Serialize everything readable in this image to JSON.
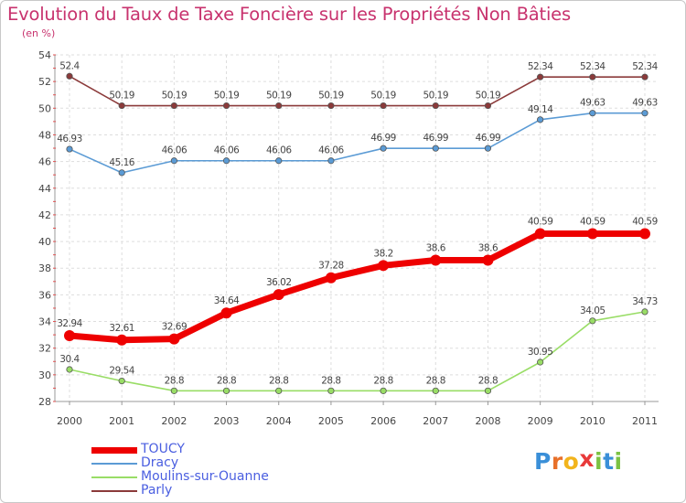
{
  "title": "Evolution du Taux de Taxe Foncière sur les Propriétés Non Bâties",
  "unit": "(en %)",
  "logo": {
    "letters": [
      "P",
      "r",
      "o",
      "x",
      "i",
      "t",
      "i"
    ],
    "colors": [
      "#3a8fd8",
      "#e8702a",
      "#f2b41c",
      "#e83a3a",
      "#7cc243",
      "#3a8fd8",
      "#7cc243"
    ]
  },
  "chart_data": {
    "type": "line",
    "title": "Evolution du Taux de Taxe Foncière sur les Propriétés Non Bâties",
    "ylabel": "(en %)",
    "xlabel": "",
    "x": [
      "2000",
      "2001",
      "2002",
      "2003",
      "2004",
      "2005",
      "2006",
      "2007",
      "2008",
      "2009",
      "2010",
      "2011"
    ],
    "ylim": [
      28,
      54
    ],
    "yticks": [
      28,
      30,
      32,
      34,
      36,
      38,
      40,
      42,
      44,
      46,
      48,
      50,
      52,
      54
    ],
    "grid": true,
    "legend_position": "bottom-left",
    "series": [
      {
        "name": "TOUCY",
        "color": "#ee0000",
        "values": [
          32.94,
          32.61,
          32.69,
          34.64,
          36.02,
          37.28,
          38.2,
          38.6,
          38.6,
          40.59,
          40.59,
          40.59
        ],
        "labels": [
          "32.94",
          "32.61",
          "32.69",
          "34.64",
          "36.02",
          "37.28",
          "38.2",
          "38.6",
          "38.6",
          "40.59",
          "40.59",
          "40.59"
        ]
      },
      {
        "name": "Dracy",
        "color": "#5b9bd5",
        "values": [
          46.93,
          45.16,
          46.06,
          46.06,
          46.06,
          46.06,
          46.99,
          46.99,
          46.99,
          49.14,
          49.63,
          49.63
        ],
        "labels": [
          "46.93",
          "45.16",
          "46.06",
          "46.06",
          "46.06",
          "46.06",
          "46.99",
          "46.99",
          "46.99",
          "49.14",
          "49.63",
          "49.63"
        ]
      },
      {
        "name": "Moulins-sur-Ouanne",
        "color": "#99dd66",
        "values": [
          30.4,
          29.54,
          28.8,
          28.8,
          28.8,
          28.8,
          28.8,
          28.8,
          28.8,
          30.95,
          34.05,
          34.73
        ],
        "labels": [
          "30.4",
          "29.54",
          "28.8",
          "28.8",
          "28.8",
          "28.8",
          "28.8",
          "28.8",
          "28.8",
          "30.95",
          "34.05",
          "34.73"
        ]
      },
      {
        "name": "Parly",
        "color": "#8b3a3a",
        "values": [
          52.4,
          50.19,
          50.19,
          50.19,
          50.19,
          50.19,
          50.19,
          50.19,
          50.19,
          52.34,
          52.34,
          52.34
        ],
        "labels": [
          "52.4",
          "50.19",
          "50.19",
          "50.19",
          "50.19",
          "50.19",
          "50.19",
          "50.19",
          "50.19",
          "52.34",
          "52.34",
          "52.34"
        ]
      }
    ]
  }
}
